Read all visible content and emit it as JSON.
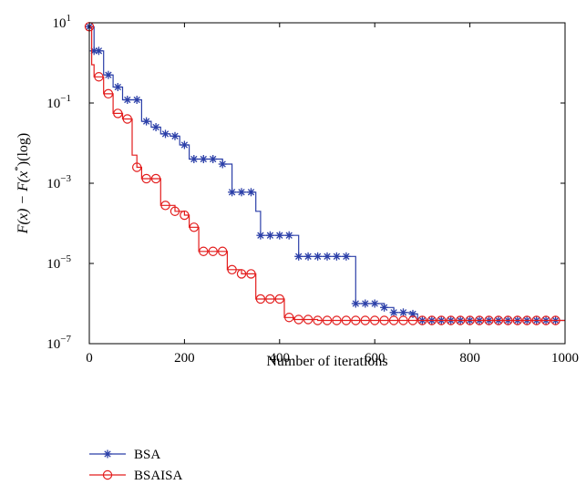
{
  "chart_data": {
    "type": "line",
    "xlabel": "Number of iterations",
    "ylabel_main": "F(x) − F(x",
    "ylabel_sup": "*",
    "ylabel_tail": ")(log)",
    "yscale": "log",
    "xlim": [
      0,
      1000
    ],
    "ylim": [
      1e-07,
      10
    ],
    "x_ticks": [
      "0",
      "200",
      "400",
      "600",
      "800",
      "1000"
    ],
    "x_tick_values": [
      0,
      200,
      400,
      600,
      800,
      1000
    ],
    "y_ticks": [
      {
        "base": "10",
        "exp": "1",
        "value": 10
      },
      {
        "base": "10",
        "exp": "−1",
        "value": 0.1
      },
      {
        "base": "10",
        "exp": "−3",
        "value": 0.001
      },
      {
        "base": "10",
        "exp": "−5",
        "value": 1e-05
      },
      {
        "base": "10",
        "exp": "−7",
        "value": 1e-07
      }
    ],
    "legend_position": "below-left",
    "series": [
      {
        "name": "BSA",
        "color": "#2b3fa8",
        "marker": "asterisk",
        "steps": [
          [
            0,
            8
          ],
          [
            10,
            2
          ],
          [
            30,
            0.5
          ],
          [
            50,
            0.25
          ],
          [
            70,
            0.12
          ],
          [
            110,
            0.035
          ],
          [
            130,
            0.025
          ],
          [
            150,
            0.017
          ],
          [
            170,
            0.015
          ],
          [
            190,
            0.009
          ],
          [
            210,
            0.004
          ],
          [
            280,
            0.003
          ],
          [
            300,
            0.0006
          ],
          [
            350,
            0.0002
          ],
          [
            360,
            5e-05
          ],
          [
            440,
            1.5e-05
          ],
          [
            560,
            1e-06
          ],
          [
            620,
            8e-07
          ],
          [
            640,
            6e-07
          ],
          [
            680,
            5.5e-07
          ],
          [
            690,
            3.8e-07
          ],
          [
            1000,
            3.8e-07
          ]
        ],
        "marker_x": [
          0,
          10,
          20,
          40,
          60,
          80,
          100,
          120,
          140,
          160,
          180,
          200,
          220,
          240,
          260,
          280,
          300,
          320,
          340,
          360,
          380,
          400,
          420,
          440,
          460,
          480,
          500,
          520,
          540,
          560,
          580,
          600,
          620,
          640,
          660,
          680,
          700,
          720,
          740,
          760,
          780,
          800,
          820,
          840,
          860,
          880,
          900,
          920,
          940,
          960,
          980
        ]
      },
      {
        "name": "BSAISA",
        "color": "#e31d1d",
        "marker": "circle",
        "steps": [
          [
            0,
            8
          ],
          [
            5,
            0.9
          ],
          [
            10,
            0.45
          ],
          [
            30,
            0.17
          ],
          [
            50,
            0.055
          ],
          [
            70,
            0.04
          ],
          [
            90,
            0.005
          ],
          [
            100,
            0.0025
          ],
          [
            110,
            0.0013
          ],
          [
            150,
            0.00028
          ],
          [
            180,
            0.0002
          ],
          [
            200,
            0.00016
          ],
          [
            210,
            8e-05
          ],
          [
            230,
            2e-05
          ],
          [
            290,
            7e-06
          ],
          [
            320,
            5.5e-06
          ],
          [
            350,
            1.3e-06
          ],
          [
            410,
            4.5e-07
          ],
          [
            430,
            4e-07
          ],
          [
            480,
            3.8e-07
          ],
          [
            1000,
            3.8e-07
          ]
        ],
        "marker_x": [
          0,
          20,
          40,
          60,
          80,
          100,
          120,
          140,
          160,
          180,
          200,
          220,
          240,
          260,
          280,
          300,
          320,
          340,
          360,
          380,
          400,
          420,
          440,
          460,
          480,
          500,
          520,
          540,
          560,
          580,
          600,
          620,
          640,
          660,
          680,
          700,
          720,
          740,
          760,
          780,
          800,
          820,
          840,
          860,
          880,
          900,
          920,
          940,
          960,
          980
        ]
      }
    ]
  }
}
